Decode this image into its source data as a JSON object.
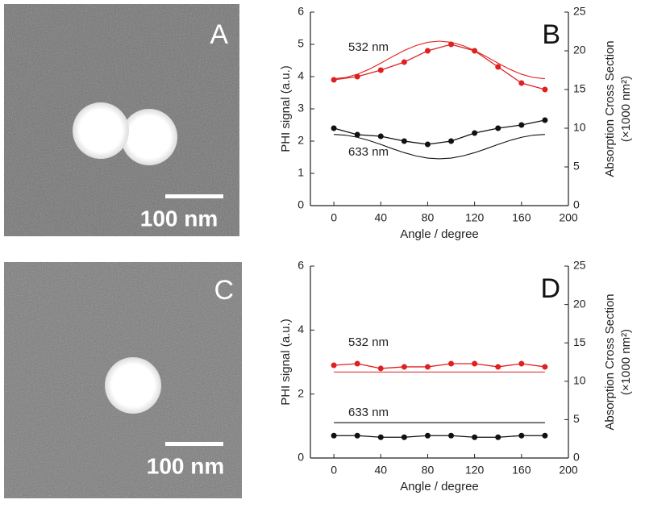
{
  "panels": [
    {
      "label": "A",
      "scale_bar": "100 nm"
    },
    {
      "label": "C",
      "scale_bar": "100 nm"
    }
  ],
  "chart_data": [
    {
      "type": "line",
      "panel": "B",
      "x_label": "Angle / degree",
      "y_label": "PHI signal (a.u.)",
      "y2_label": [
        "Absorption Cross Section",
        "(×1000 nm²)"
      ],
      "xlim": [
        -20,
        200
      ],
      "xticks": [
        0,
        40,
        80,
        120,
        160,
        200
      ],
      "ylim": [
        0,
        6
      ],
      "yticks": [
        0,
        1,
        2,
        3,
        4,
        5,
        6
      ],
      "y2lim": [
        0,
        25
      ],
      "y2ticks": [
        0,
        5,
        10,
        15,
        20,
        25
      ],
      "series": [
        {
          "name": "532 nm",
          "color": "#e02020",
          "markers": true,
          "x": [
            0,
            20,
            40,
            60,
            80,
            100,
            120,
            140,
            160,
            180
          ],
          "values": [
            3.9,
            4.0,
            4.2,
            4.45,
            4.8,
            5.0,
            4.8,
            4.3,
            3.8,
            3.6
          ]
        },
        {
          "name": "633 nm",
          "color": "#111111",
          "markers": true,
          "x": [
            0,
            20,
            40,
            60,
            80,
            100,
            120,
            140,
            160,
            180
          ],
          "values": [
            2.4,
            2.2,
            2.15,
            2.0,
            1.9,
            2.0,
            2.25,
            2.4,
            2.5,
            2.65
          ]
        },
        {
          "color": "#e02020",
          "markers": false,
          "axis": "y2",
          "x": [
            0,
            10,
            20,
            30,
            40,
            50,
            60,
            70,
            80,
            90,
            100,
            110,
            120,
            130,
            140,
            150,
            160,
            170,
            180
          ],
          "values": [
            16.4,
            16.55,
            16.97,
            17.61,
            18.4,
            19.25,
            20.04,
            20.68,
            21.1,
            21.25,
            21.1,
            20.68,
            20.04,
            19.25,
            18.4,
            17.61,
            16.97,
            16.55,
            16.4
          ]
        },
        {
          "color": "#111111",
          "markers": false,
          "axis": "y2",
          "x": [
            0,
            10,
            20,
            30,
            40,
            50,
            60,
            70,
            80,
            90,
            100,
            110,
            120,
            130,
            140,
            150,
            160,
            170,
            180
          ],
          "values": [
            9.2,
            9.1,
            8.83,
            8.41,
            7.9,
            7.35,
            6.84,
            6.42,
            6.14,
            6.05,
            6.14,
            6.42,
            6.84,
            7.35,
            7.9,
            8.41,
            8.83,
            9.1,
            9.2
          ]
        }
      ]
    },
    {
      "type": "line",
      "panel": "D",
      "x_label": "Angle / degree",
      "y_label": "PHI signal (a.u.)",
      "y2_label": [
        "Absorption Cross Section",
        "(×1000 nm²)"
      ],
      "xlim": [
        -20,
        200
      ],
      "xticks": [
        0,
        40,
        80,
        120,
        160,
        200
      ],
      "ylim": [
        0,
        6
      ],
      "yticks": [
        0,
        2,
        4,
        6
      ],
      "y2lim": [
        0,
        25
      ],
      "y2ticks": [
        0,
        5,
        10,
        15,
        20,
        25
      ],
      "series": [
        {
          "name": "532 nm",
          "color": "#e02020",
          "markers": true,
          "x": [
            0,
            20,
            40,
            60,
            80,
            100,
            120,
            140,
            160,
            180
          ],
          "values": [
            2.9,
            2.95,
            2.8,
            2.85,
            2.85,
            2.95,
            2.95,
            2.85,
            2.95,
            2.85
          ]
        },
        {
          "name": "633 nm",
          "color": "#111111",
          "markers": true,
          "x": [
            0,
            20,
            40,
            60,
            80,
            100,
            120,
            140,
            160,
            180
          ],
          "values": [
            0.7,
            0.7,
            0.65,
            0.65,
            0.7,
            0.7,
            0.65,
            0.65,
            0.7,
            0.7
          ]
        },
        {
          "color": "#e02020",
          "markers": false,
          "axis": "y2",
          "x": [
            0,
            180
          ],
          "values": [
            11.2,
            11.2
          ]
        },
        {
          "color": "#111111",
          "markers": false,
          "axis": "y2",
          "x": [
            0,
            180
          ],
          "values": [
            4.6,
            4.6
          ]
        }
      ]
    }
  ]
}
